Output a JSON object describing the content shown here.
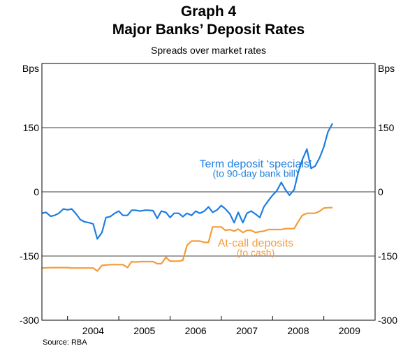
{
  "title": "Graph 4",
  "subtitle_main": "Major Banks’ Deposit Rates",
  "subtitle": "Spreads over market rates",
  "source": "Source: RBA",
  "chart_data": {
    "type": "line",
    "ylabel_left": "Bps",
    "ylabel_right": "Bps",
    "ylim": [
      -300,
      300
    ],
    "yticks": [
      -300,
      -150,
      0,
      150
    ],
    "xlim": [
      2003.5,
      2010.0
    ],
    "xticks": [
      "2004",
      "2005",
      "2006",
      "2007",
      "2008",
      "2009"
    ],
    "grid": true,
    "series": [
      {
        "name": "Term deposit ‘specials’",
        "note": "(to 90-day bank bill)",
        "color": "#1E7EE0",
        "points": [
          [
            2003.5,
            -50
          ],
          [
            2003.58,
            -48
          ],
          [
            2003.67,
            -57
          ],
          [
            2003.75,
            -55
          ],
          [
            2003.83,
            -50
          ],
          [
            2003.92,
            -40
          ],
          [
            2004.0,
            -42
          ],
          [
            2004.08,
            -40
          ],
          [
            2004.17,
            -52
          ],
          [
            2004.25,
            -65
          ],
          [
            2004.33,
            -70
          ],
          [
            2004.42,
            -72
          ],
          [
            2004.5,
            -75
          ],
          [
            2004.58,
            -110
          ],
          [
            2004.67,
            -95
          ],
          [
            2004.75,
            -60
          ],
          [
            2004.83,
            -58
          ],
          [
            2004.92,
            -50
          ],
          [
            2005.0,
            -45
          ],
          [
            2005.08,
            -55
          ],
          [
            2005.17,
            -55
          ],
          [
            2005.25,
            -43
          ],
          [
            2005.33,
            -43
          ],
          [
            2005.42,
            -45
          ],
          [
            2005.5,
            -43
          ],
          [
            2005.58,
            -43
          ],
          [
            2005.67,
            -44
          ],
          [
            2005.75,
            -62
          ],
          [
            2005.83,
            -45
          ],
          [
            2005.92,
            -48
          ],
          [
            2006.0,
            -60
          ],
          [
            2006.08,
            -50
          ],
          [
            2006.17,
            -50
          ],
          [
            2006.25,
            -58
          ],
          [
            2006.33,
            -50
          ],
          [
            2006.42,
            -55
          ],
          [
            2006.5,
            -45
          ],
          [
            2006.58,
            -50
          ],
          [
            2006.67,
            -45
          ],
          [
            2006.75,
            -35
          ],
          [
            2006.83,
            -48
          ],
          [
            2006.92,
            -42
          ],
          [
            2007.0,
            -32
          ],
          [
            2007.08,
            -40
          ],
          [
            2007.17,
            -52
          ],
          [
            2007.25,
            -72
          ],
          [
            2007.33,
            -48
          ],
          [
            2007.42,
            -72
          ],
          [
            2007.5,
            -50
          ],
          [
            2007.58,
            -45
          ],
          [
            2007.67,
            -52
          ],
          [
            2007.75,
            -60
          ],
          [
            2007.83,
            -35
          ],
          [
            2007.92,
            -20
          ],
          [
            2008.0,
            -8
          ],
          [
            2008.08,
            2
          ],
          [
            2008.17,
            22
          ],
          [
            2008.25,
            5
          ],
          [
            2008.33,
            -8
          ],
          [
            2008.42,
            5
          ],
          [
            2008.5,
            45
          ],
          [
            2008.58,
            75
          ],
          [
            2008.67,
            100
          ],
          [
            2008.75,
            55
          ],
          [
            2008.83,
            60
          ],
          [
            2008.92,
            80
          ],
          [
            2009.0,
            105
          ],
          [
            2009.08,
            140
          ],
          [
            2009.17,
            160
          ]
        ]
      },
      {
        "name": "At-call deposits",
        "note": "(to cash)",
        "color": "#F59B3A",
        "points": [
          [
            2003.5,
            -178
          ],
          [
            2003.67,
            -177
          ],
          [
            2004.0,
            -177
          ],
          [
            2004.08,
            -178
          ],
          [
            2004.5,
            -178
          ],
          [
            2004.58,
            -185
          ],
          [
            2004.67,
            -172
          ],
          [
            2004.83,
            -170
          ],
          [
            2005.08,
            -170
          ],
          [
            2005.17,
            -177
          ],
          [
            2005.25,
            -163
          ],
          [
            2005.33,
            -164
          ],
          [
            2005.42,
            -163
          ],
          [
            2005.67,
            -163
          ],
          [
            2005.75,
            -168
          ],
          [
            2005.83,
            -168
          ],
          [
            2005.92,
            -153
          ],
          [
            2006.0,
            -162
          ],
          [
            2006.17,
            -162
          ],
          [
            2006.25,
            -160
          ],
          [
            2006.33,
            -125
          ],
          [
            2006.42,
            -115
          ],
          [
            2006.58,
            -115
          ],
          [
            2006.67,
            -118
          ],
          [
            2006.75,
            -118
          ],
          [
            2006.83,
            -82
          ],
          [
            2006.92,
            -82
          ],
          [
            2007.0,
            -82
          ],
          [
            2007.08,
            -90
          ],
          [
            2007.17,
            -88
          ],
          [
            2007.25,
            -92
          ],
          [
            2007.33,
            -87
          ],
          [
            2007.42,
            -95
          ],
          [
            2007.5,
            -90
          ],
          [
            2007.58,
            -90
          ],
          [
            2007.67,
            -95
          ],
          [
            2007.75,
            -93
          ],
          [
            2007.83,
            -92
          ],
          [
            2007.92,
            -88
          ],
          [
            2008.17,
            -88
          ],
          [
            2008.25,
            -86
          ],
          [
            2008.42,
            -86
          ],
          [
            2008.5,
            -70
          ],
          [
            2008.58,
            -55
          ],
          [
            2008.67,
            -50
          ],
          [
            2008.83,
            -50
          ],
          [
            2008.92,
            -45
          ],
          [
            2009.0,
            -38
          ],
          [
            2009.08,
            -37
          ],
          [
            2009.17,
            -37
          ]
        ]
      }
    ]
  }
}
